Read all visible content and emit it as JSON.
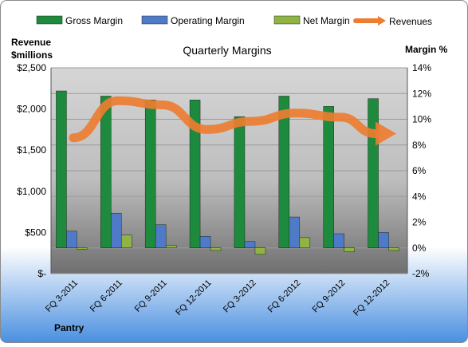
{
  "chart_data": {
    "type": "bar",
    "title": "Quarterly Margins",
    "company": "Pantry",
    "left_axis_label": [
      "Revenue",
      "$millions"
    ],
    "right_axis_label": "Margin %",
    "categories": [
      "FQ 3-2011",
      "FQ 6-2011",
      "FQ 9-2011",
      "FQ 12-2011",
      "FQ 3-2012",
      "FQ 6-2012",
      "FQ 9-2012",
      "FQ 12-2012"
    ],
    "left_ticks": [
      "$-",
      "$500",
      "$1,000",
      "$1,500",
      "$2,000",
      "$2,500"
    ],
    "right_ticks": [
      "-2%",
      "0%",
      "2%",
      "4%",
      "6%",
      "8%",
      "10%",
      "12%",
      "14%"
    ],
    "left_range": [
      0,
      2500
    ],
    "right_range": [
      -2,
      14
    ],
    "legend_position": "top",
    "series": [
      {
        "name": "Gross Margin",
        "axis": "right",
        "color": "#1e8a3e",
        "values": [
          12.2,
          11.8,
          11.5,
          11.5,
          10.2,
          11.8,
          11.0,
          11.6
        ]
      },
      {
        "name": "Operating Margin",
        "axis": "right",
        "color": "#4f7ac8",
        "values": [
          1.3,
          2.7,
          1.8,
          0.9,
          0.5,
          2.4,
          1.1,
          1.2
        ]
      },
      {
        "name": "Net Margin",
        "axis": "right",
        "color": "#8fb443",
        "values": [
          0.0,
          1.0,
          0.2,
          -0.2,
          -0.5,
          0.8,
          -0.3,
          -0.2
        ]
      },
      {
        "name": "Revenues",
        "axis": "left",
        "color": "#ed7d31",
        "values": [
          1650,
          2100,
          2050,
          1750,
          1850,
          1950,
          1900,
          1700
        ]
      }
    ]
  }
}
